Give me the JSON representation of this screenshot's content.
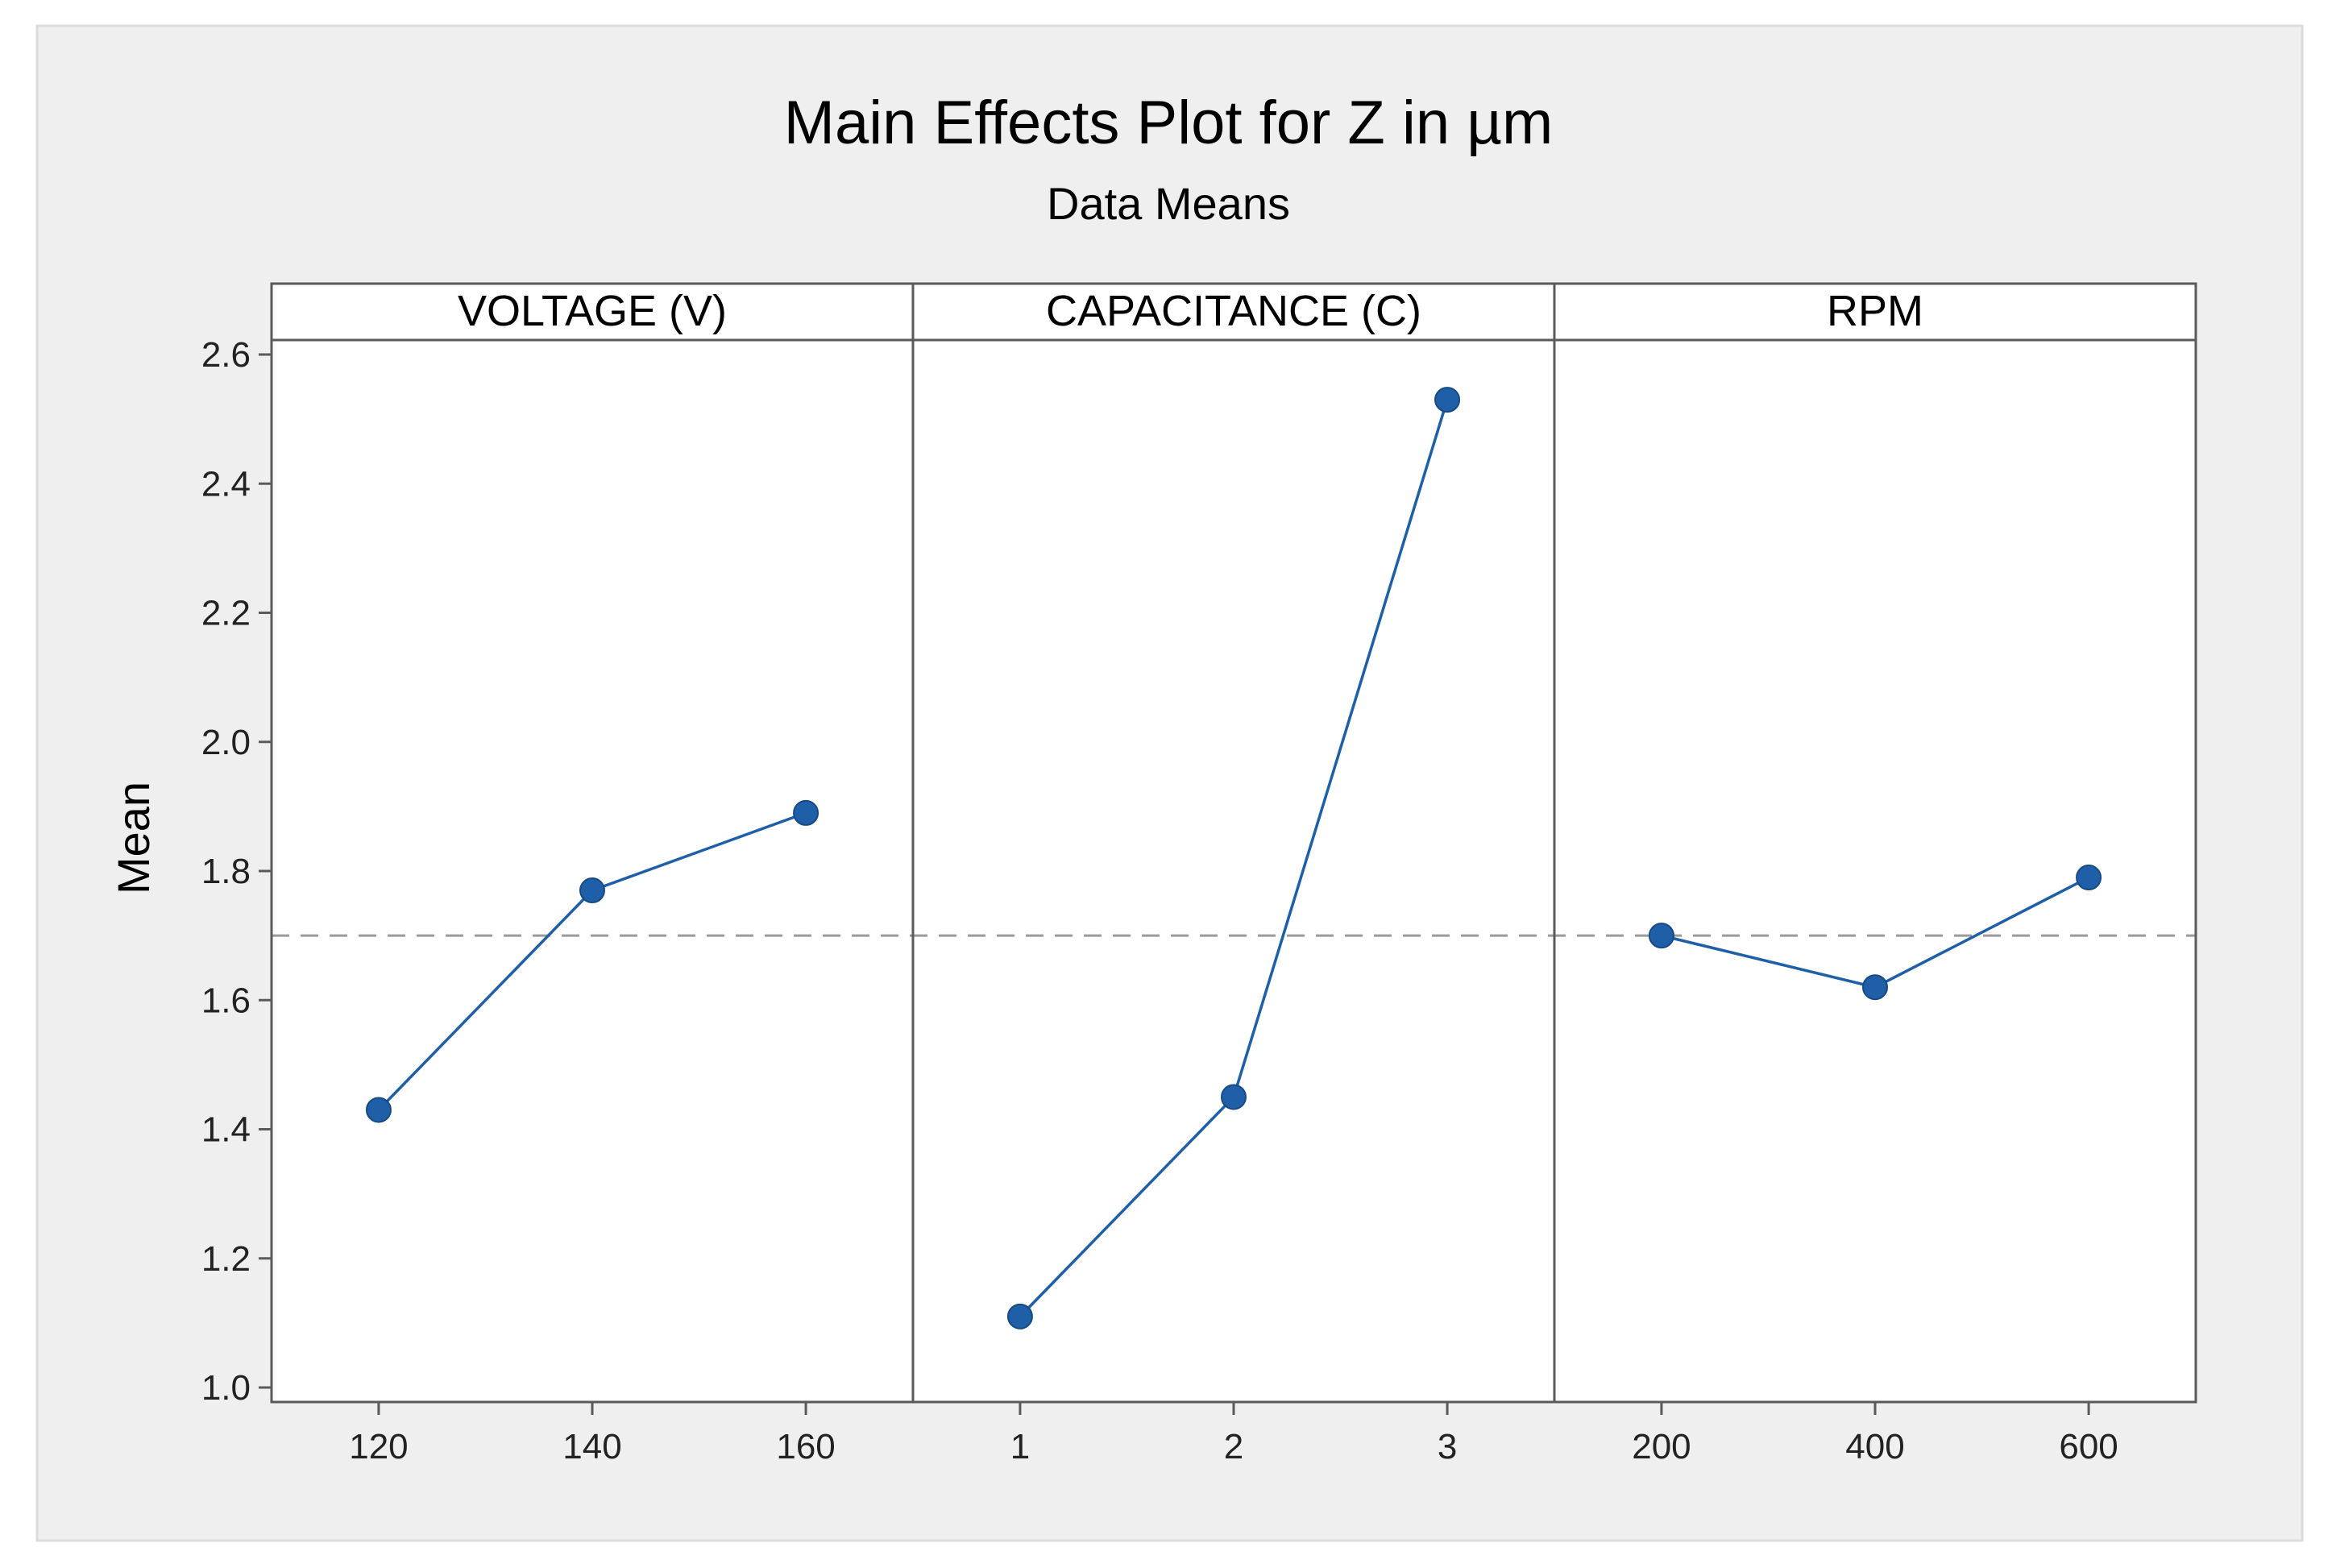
{
  "chart_data": {
    "type": "line",
    "title": "Main Effects Plot for Z in µm",
    "subtitle": "Data Means",
    "ylabel": "Mean",
    "ylim": [
      1.0,
      2.6
    ],
    "yticks": [
      "1.0",
      "1.2",
      "1.4",
      "1.6",
      "1.8",
      "2.0",
      "2.2",
      "2.4",
      "2.6"
    ],
    "overall_mean": 1.7,
    "grid": false,
    "colors": {
      "series": "#1f5fa8",
      "reference": "#9a9a9a",
      "frame": "#5a5a5a",
      "background": "#efefef"
    },
    "panels": [
      {
        "name": "VOLTAGE (V)",
        "x": [
          "120",
          "140",
          "160"
        ],
        "values": [
          1.43,
          1.77,
          1.89
        ]
      },
      {
        "name": "CAPACITANCE (C)",
        "x": [
          "1",
          "2",
          "3"
        ],
        "values": [
          1.11,
          1.45,
          2.53
        ]
      },
      {
        "name": "RPM",
        "x": [
          "200",
          "400",
          "600"
        ],
        "values": [
          1.7,
          1.62,
          1.79
        ]
      }
    ]
  }
}
